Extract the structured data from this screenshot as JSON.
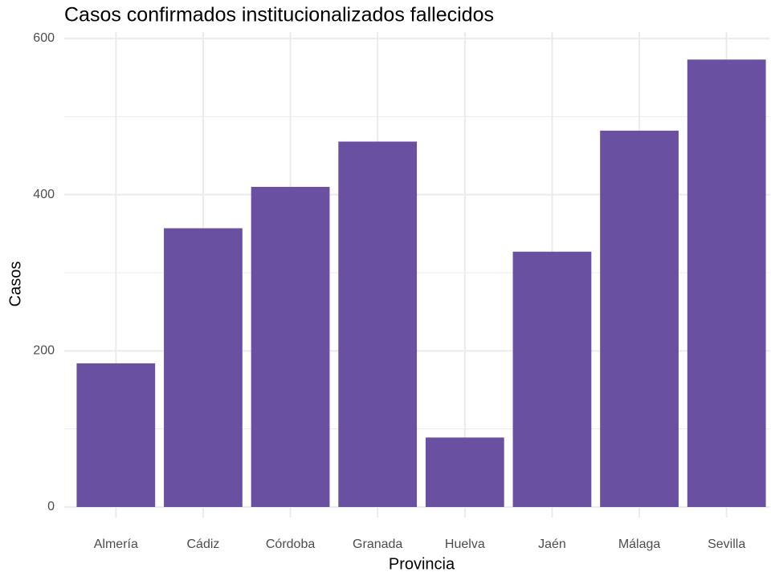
{
  "chart_data": {
    "type": "bar",
    "title": "Casos confirmados institucionalizados fallecidos",
    "x_label": "Provincia",
    "y_label": "Casos",
    "categories": [
      "Almería",
      "Cádiz",
      "Córdoba",
      "Granada",
      "Huelva",
      "Jaén",
      "Málaga",
      "Sevilla"
    ],
    "values": [
      184,
      357,
      410,
      468,
      89,
      327,
      482,
      573
    ],
    "color": "#6950a1",
    "ylim": [
      0,
      600
    ],
    "yticks": [
      0,
      200,
      400,
      600
    ],
    "y_minor_ticks": [
      100,
      300,
      500
    ],
    "grid": true
  }
}
